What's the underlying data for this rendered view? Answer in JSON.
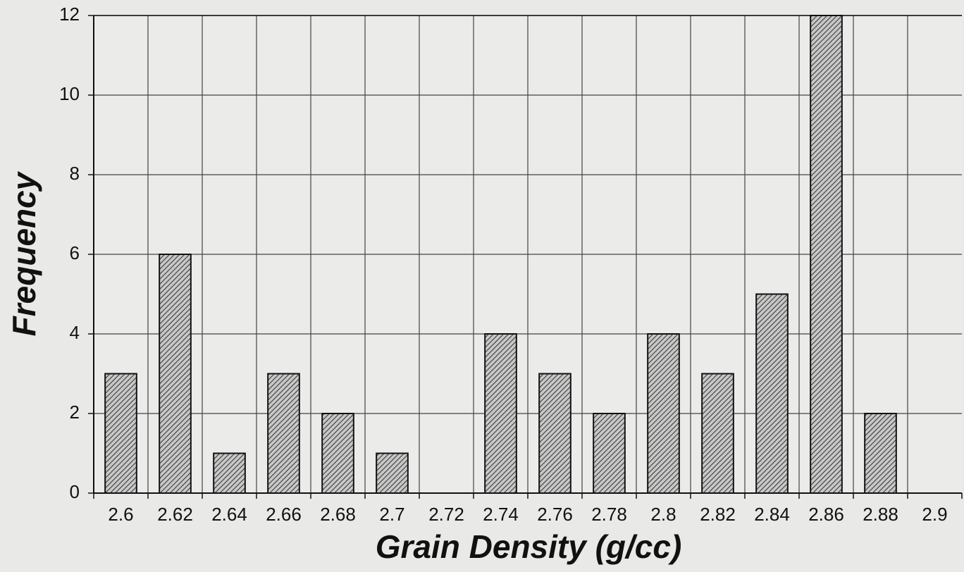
{
  "chart_data": {
    "type": "bar",
    "x_label": "Grain Density (g/cc)",
    "y_label": "Frequency",
    "categories": [
      "2.6",
      "2.62",
      "2.64",
      "2.66",
      "2.68",
      "2.7",
      "2.72",
      "2.74",
      "2.76",
      "2.78",
      "2.8",
      "2.82",
      "2.84",
      "2.86",
      "2.88",
      "2.9"
    ],
    "values": [
      3,
      6,
      1,
      3,
      2,
      1,
      0,
      4,
      3,
      2,
      4,
      3,
      5,
      12,
      2,
      0
    ],
    "color": "#3a3a3a",
    "ylim": [
      0,
      12
    ],
    "yticks": [
      0,
      2,
      4,
      6,
      8,
      10,
      12
    ],
    "grid": true
  }
}
